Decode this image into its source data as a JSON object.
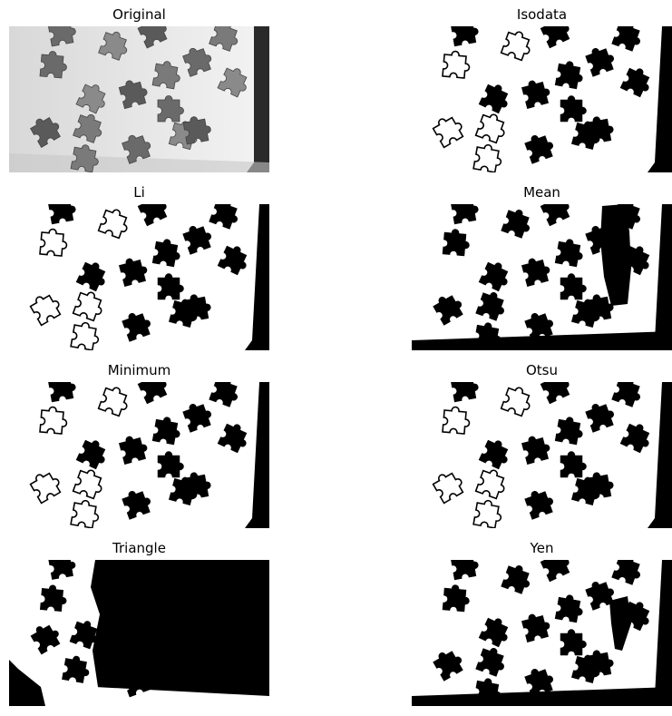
{
  "panels": [
    {
      "title": "Original",
      "kind": "gray"
    },
    {
      "title": "Isodata",
      "kind": "otsu"
    },
    {
      "title": "Li",
      "kind": "li"
    },
    {
      "title": "Mean",
      "kind": "mean"
    },
    {
      "title": "Minimum",
      "kind": "li"
    },
    {
      "title": "Otsu",
      "kind": "otsu"
    },
    {
      "title": "Triangle",
      "kind": "triangle"
    },
    {
      "title": "Yen",
      "kind": "yen"
    }
  ]
}
